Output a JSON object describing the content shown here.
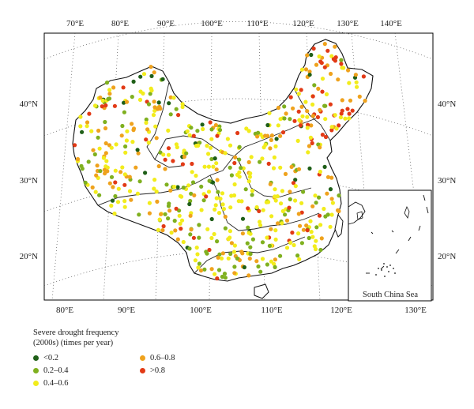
{
  "colors": {
    "frame": "#000000",
    "graticule": "#555555",
    "border": "#222222",
    "dot_lt_02": "#1f5f18",
    "dot_02_04": "#7fb01f",
    "dot_04_06": "#f2ec1c",
    "dot_06_08": "#efa21d",
    "dot_gt_08": "#e23a16"
  },
  "axes": {
    "top_longitudes": [
      "70°E",
      "80°E",
      "90°E",
      "100°E",
      "110°E",
      "120°E",
      "130°E",
      "140°E"
    ],
    "bottom_longitudes": [
      "80°E",
      "90°E",
      "100°E",
      "110°E",
      "120°E",
      "130°E"
    ],
    "left_latitudes": [
      "40°N",
      "30°N",
      "20°N"
    ],
    "right_latitudes": [
      "40°N",
      "30°N",
      "20°N"
    ]
  },
  "inset": {
    "label": "South China Sea"
  },
  "legend": {
    "title_line1": "Severe drought frequency",
    "title_line2": "(2000s) (times per year)",
    "items": [
      {
        "label": "<0.2",
        "color_key": "dot_lt_02"
      },
      {
        "label": "0.2–0.4",
        "color_key": "dot_02_04"
      },
      {
        "label": "0.4–0.6",
        "color_key": "dot_04_06"
      },
      {
        "label": "0.6–0.8",
        "color_key": "dot_06_08"
      },
      {
        "label": ">0.8",
        "color_key": "dot_gt_08"
      }
    ]
  }
}
